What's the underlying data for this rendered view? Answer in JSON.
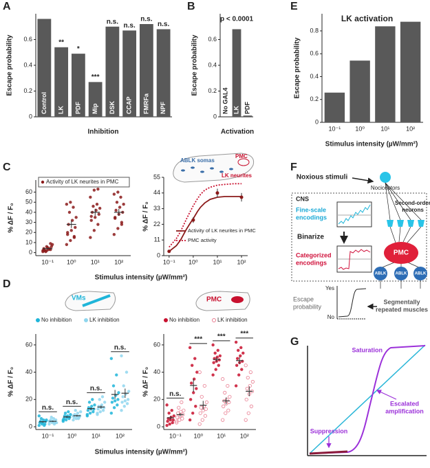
{
  "panel_letters": [
    "A",
    "B",
    "C",
    "D",
    "E",
    "F",
    "G"
  ],
  "chart_data": [
    {
      "type": "bar",
      "ylabel": "Escape probability",
      "xlabel": "Inhibition",
      "categories": [
        "Control",
        "LK",
        "PDF",
        "Mip",
        "DSK",
        "CCAP",
        "FMRFa",
        "NPF"
      ],
      "values": [
        0.76,
        0.54,
        0.49,
        0.27,
        0.7,
        0.67,
        0.72,
        0.68
      ],
      "annotations": [
        null,
        "**",
        "*",
        "***",
        "n.s.",
        "n.s.",
        "n.s.",
        "n.s."
      ],
      "color": "#595959",
      "ylim": [
        0,
        0.8
      ],
      "yticks": [
        0,
        0.2,
        0.4,
        0.6
      ],
      "category_labels": "inside"
    },
    {
      "type": "bar",
      "ylabel": "Escape probability",
      "xlabel": "Activation",
      "annotation": "p < 0.0001",
      "categories": [
        "No GAL4",
        "LK",
        "PDF"
      ],
      "values": [
        0,
        0.68,
        0.01
      ],
      "color": "#595959",
      "ylim": [
        0,
        0.8
      ],
      "yticks": [
        0,
        0.2,
        0.4,
        0.6
      ],
      "category_labels": "inside"
    },
    {
      "type": "bar",
      "title": "LK activation",
      "ylabel": "Escape probability",
      "xlabel": "Stimulus intensity (µW/mm²)",
      "categories": [
        "10⁻¹",
        "10⁰",
        "10¹",
        "10²"
      ],
      "values": [
        0.26,
        0.54,
        0.84,
        0.88
      ],
      "color": "#595959",
      "ylim": [
        0,
        0.95
      ],
      "yticks": [
        0,
        0.2,
        0.4,
        0.6,
        0.8
      ],
      "category_labels": "below"
    },
    {
      "type": "strip",
      "ylabel": "% ΔF / F₀",
      "xlabel": "Stimulus intensity (µW/mm²)",
      "categories": [
        "10⁻¹",
        "10⁰",
        "10¹",
        "10²"
      ],
      "ylim": [
        -3,
        72
      ],
      "yticks": [
        0,
        10,
        20,
        30,
        40,
        50,
        60
      ],
      "legend": "upper left",
      "series": [
        {
          "name": "Activity of  LK neurites in PMC",
          "color": "#8b1a1a",
          "values": [
            [
              1,
              2,
              3,
              4,
              5,
              6,
              2,
              3,
              8,
              1,
              4,
              2,
              6,
              9,
              3
            ],
            [
              8,
              12,
              15,
              18,
              22,
              25,
              28,
              32,
              35,
              40,
              45,
              48,
              50,
              16,
              20
            ],
            [
              15,
              22,
              28,
              32,
              35,
              38,
              40,
              42,
              44,
              46,
              48,
              55,
              62,
              63,
              36
            ],
            [
              18,
              24,
              30,
              35,
              38,
              40,
              42,
              45,
              48,
              50,
              55,
              58,
              60,
              28,
              34
            ]
          ],
          "means": [
            4,
            28,
            40,
            40
          ],
          "sems": [
            0.7,
            3.6,
            3.5,
            3.4
          ]
        }
      ]
    },
    {
      "type": "line",
      "ylabel": "% ΔF / F₀",
      "xlim": [
        0.06,
        180
      ],
      "log_x": true,
      "xticks": [
        {
          "value": 0.1,
          "label": "10⁻¹"
        },
        {
          "value": 1,
          "label": "10⁰"
        },
        {
          "value": 10,
          "label": "10¹"
        },
        {
          "value": 100,
          "label": "10²"
        }
      ],
      "ylim": [
        0,
        55
      ],
      "yticks": [
        0,
        11,
        22,
        33,
        44,
        55
      ],
      "legend": "lower right",
      "series": [
        {
          "name": "Activity of LK neurites in PMC",
          "color": "#8b1a1a",
          "x": [
            0.1,
            1,
            10,
            100
          ],
          "values": [
            3,
            25,
            44,
            41
          ],
          "errors": [
            1,
            2,
            3,
            3
          ],
          "fit": {
            "x": [
              0.1,
              0.2,
              0.3,
              0.5,
              0.7,
              1,
              1.5,
              2,
              3,
              5,
              10,
              20,
              50,
              100
            ],
            "values": [
              3,
              7,
              11,
              18,
              22,
              26,
              31,
              34,
              37,
              39.5,
              41,
              41.5,
              41.5,
              41.5
            ]
          }
        },
        {
          "name": "PMC activity",
          "color": "#c8102e",
          "style": "dotted",
          "x": [
            0.1,
            0.2,
            0.3,
            0.5,
            0.7,
            1,
            1.5,
            2,
            3,
            5,
            10,
            20,
            50,
            100
          ],
          "values": [
            6,
            12,
            17,
            25,
            30,
            35,
            40,
            43,
            46,
            48,
            49.5,
            50,
            50.5,
            50.5
          ]
        }
      ]
    },
    {
      "type": "strip",
      "ylabel": "% ΔF / F₀",
      "xlabel": "Stimulus intensity (µW/mm²)",
      "categories": [
        "10⁻¹",
        "10⁰",
        "10¹",
        "10²"
      ],
      "ylim": [
        -2,
        68
      ],
      "yticks": [
        0,
        20,
        40,
        60
      ],
      "legend": "top",
      "annotations": [
        "n.s.",
        "n.s.",
        "n.s.",
        "n.s."
      ],
      "series": [
        {
          "name": "No inhibition",
          "color": "#1fb5d9",
          "values": [
            [
              1,
              2,
              2,
              3,
              3,
              4,
              4,
              5,
              5,
              6,
              1,
              8
            ],
            [
              4,
              5,
              6,
              6,
              7,
              7,
              8,
              8,
              9,
              10,
              11,
              5
            ],
            [
              8,
              10,
              11,
              12,
              13,
              13,
              14,
              15,
              16,
              18,
              20,
              9
            ],
            [
              10,
              14,
              16,
              18,
              19,
              20,
              21,
              23,
              25,
              30,
              38,
              50
            ]
          ],
          "means": [
            3.7,
            7.2,
            13.3,
            23.7
          ],
          "sems": [
            0.6,
            0.6,
            1,
            3.3
          ]
        },
        {
          "name": "LK inhibition",
          "color": "#8fd6ee",
          "values": [
            [
              2,
              3,
              3,
              4,
              4,
              5,
              5,
              6,
              3,
              7,
              2,
              4
            ],
            [
              5,
              6,
              7,
              7,
              8,
              8,
              9,
              10,
              11,
              12,
              6,
              8
            ],
            [
              9,
              11,
              12,
              13,
              14,
              14,
              15,
              16,
              18,
              20,
              22,
              10
            ],
            [
              12,
              15,
              17,
              18,
              19,
              20,
              22,
              24,
              26,
              30,
              40,
              52
            ]
          ],
          "means": [
            4,
            8.1,
            14.5,
            24.6
          ],
          "sems": [
            0.5,
            0.6,
            1.1,
            3.4
          ]
        }
      ]
    },
    {
      "type": "strip",
      "ylabel": "% ΔF / F₀",
      "categories": [
        "10⁻¹",
        "10⁰",
        "10¹",
        "10²"
      ],
      "ylim": [
        -2,
        68
      ],
      "yticks": [
        0,
        20,
        40,
        60
      ],
      "legend": "top",
      "annotations": [
        "n.s.",
        "***",
        "***",
        "***"
      ],
      "series": [
        {
          "name": "No inhibition",
          "color": "#c8102e",
          "values": [
            [
              1,
              2,
              3,
              4,
              5,
              5,
              6,
              7,
              8,
              10,
              12,
              16
            ],
            [
              5,
              10,
              15,
              20,
              25,
              28,
              32,
              35,
              40,
              45,
              50,
              58
            ],
            [
              38,
              42,
              45,
              47,
              48,
              49,
              50,
              51,
              52,
              54,
              56,
              60
            ],
            [
              30,
              38,
              42,
              45,
              47,
              48,
              50,
              52,
              54,
              56,
              58,
              62
            ]
          ],
          "means": [
            6.6,
            30.3,
            49.3,
            48.5
          ],
          "sems": [
            1.3,
            4.8,
            1.7,
            2.6
          ]
        },
        {
          "name": "LK inhibition",
          "color": "#e87a8e",
          "filled": false,
          "values": [
            [
              3,
              5,
              6,
              7,
              8,
              9,
              10,
              11,
              12,
              14,
              18,
              4
            ],
            [
              2,
              5,
              8,
              10,
              12,
              13,
              14,
              15,
              18,
              22,
              30,
              40
            ],
            [
              5,
              10,
              12,
              15,
              17,
              18,
              19,
              20,
              22,
              25,
              30,
              35
            ],
            [
              5,
              10,
              15,
              20,
              24,
              26,
              28,
              30,
              33,
              36,
              40,
              45
            ]
          ],
          "means": [
            8.9,
            15.8,
            19,
            26
          ],
          "sems": [
            1.3,
            3.2,
            2.5,
            3.6
          ]
        }
      ]
    }
  ],
  "insets": {
    "C": {
      "somas": "ABLK somas",
      "pmc": "PMC",
      "neurites": "LK neurites"
    },
    "D_left": "VMs",
    "D_right": "PMC"
  },
  "diagram_F": {
    "stimulus": "Noxious stimuli",
    "nociceptors": "Nociceptors",
    "cns": "CNS",
    "fine_scale": [
      "Fine-scale",
      "encodings"
    ],
    "second_order": [
      "Second-order",
      "neurons"
    ],
    "binarize": "Binarize",
    "categorized": [
      "Categorized",
      "encodings"
    ],
    "pmc": "PMC",
    "ablk": [
      "ABLK",
      "ABLK",
      "ABLK"
    ],
    "yes": "Yes",
    "no": "No",
    "escape": [
      "Escape",
      "probability"
    ],
    "muscles": [
      "Segmentally",
      "repeated muscles"
    ]
  },
  "diagram_G": {
    "saturation": "Saturation",
    "escalated": [
      "Escalated",
      "amplification"
    ],
    "suppression": "Suppression"
  }
}
